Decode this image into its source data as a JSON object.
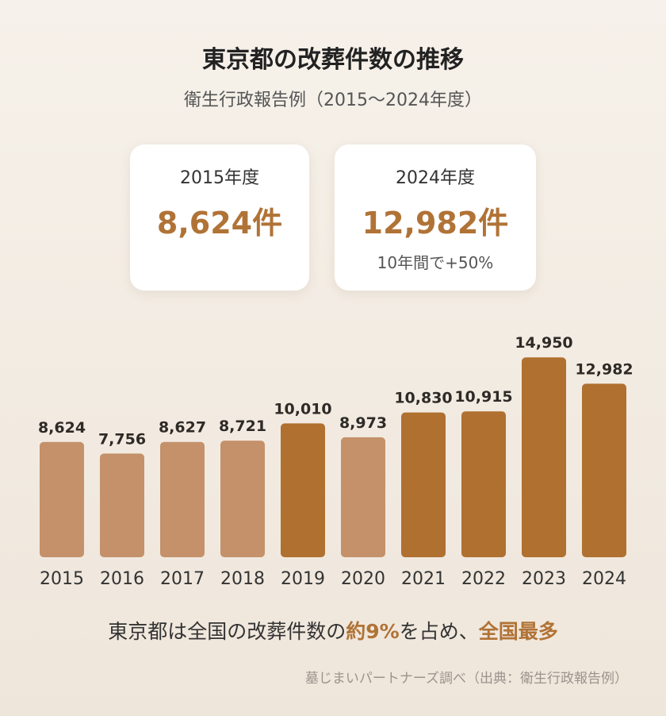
{
  "header": {
    "title": "東京都の改葬件数の推移",
    "subtitle": "衛生行政報告例（2015〜2024年度）"
  },
  "cards": {
    "left": {
      "year": "2015年度",
      "value": "8,624件"
    },
    "right": {
      "year": "2024年度",
      "value": "12,982件",
      "note": "10年間で+50%"
    }
  },
  "chart_data": {
    "type": "bar",
    "categories": [
      "2015",
      "2016",
      "2017",
      "2018",
      "2019",
      "2020",
      "2021",
      "2022",
      "2023",
      "2024"
    ],
    "values": [
      8624,
      7756,
      8627,
      8721,
      10010,
      8973,
      10830,
      10915,
      14950,
      12982
    ],
    "value_labels": [
      "8,624",
      "7,756",
      "8,627",
      "8,721",
      "10,010",
      "8,973",
      "10,830",
      "10,915",
      "14,950",
      "12,982"
    ],
    "threshold_highlight": 10000,
    "colors": {
      "light": "#c4916a",
      "dark": "#b07030"
    },
    "title": "",
    "xlabel": "",
    "ylabel": "",
    "ylim": [
      0,
      15000
    ],
    "grid": false
  },
  "footer": {
    "text_1": "東京都は全国の改葬件数の",
    "accent_1": "約9%",
    "text_2": "を占め、",
    "accent_2": "全国最多"
  },
  "source": "墓じまいパートナーズ調べ（出典：衛生行政報告例）",
  "colors": {
    "accent": "#b07336",
    "background": "#f3ece3"
  }
}
